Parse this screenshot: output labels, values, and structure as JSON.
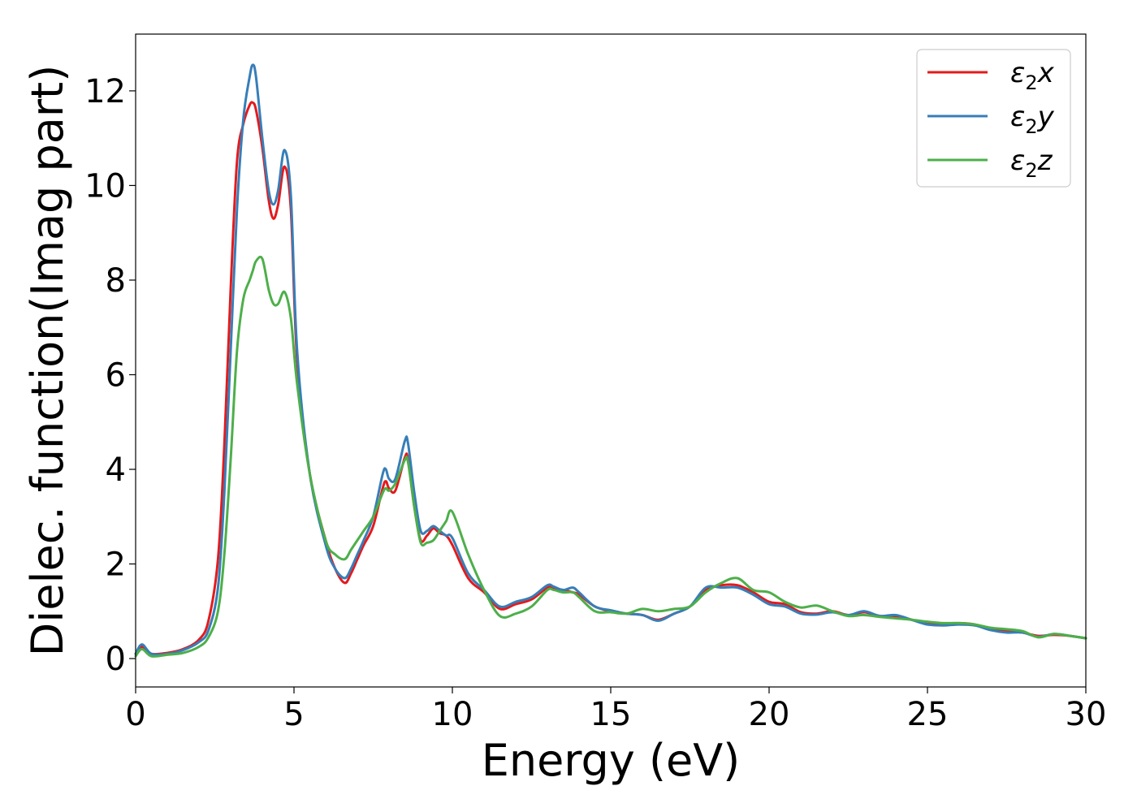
{
  "chart_data": {
    "type": "line",
    "xlabel": "Energy (eV)",
    "ylabel": "Dielec. function(Imag part)",
    "xlim": [
      0,
      30
    ],
    "ylim": [
      -0.6,
      13.2
    ],
    "xticks": [
      0,
      5,
      10,
      15,
      20,
      25,
      30
    ],
    "yticks": [
      0,
      2,
      4,
      6,
      8,
      10,
      12
    ],
    "grid": false,
    "legend_position": "top-right",
    "series": [
      {
        "name": "ε2x",
        "legend_base": "ε",
        "legend_sub": "2",
        "legend_tail": "x",
        "color": "#e41a1c",
        "x": [
          0,
          0.2,
          0.5,
          1,
          1.5,
          2,
          2.3,
          2.6,
          2.8,
          3,
          3.2,
          3.4,
          3.6,
          3.7,
          3.8,
          4,
          4.2,
          4.35,
          4.5,
          4.7,
          4.9,
          5.1,
          5.5,
          6,
          6.3,
          6.6,
          6.8,
          7,
          7.2,
          7.5,
          7.8,
          7.9,
          8,
          8.2,
          8.5,
          8.6,
          8.8,
          9,
          9.2,
          9.4,
          9.6,
          9.8,
          10,
          10.5,
          11,
          11.5,
          12,
          12.5,
          13,
          13.2,
          13.5,
          13.8,
          14,
          14.5,
          15,
          15.5,
          16,
          16.5,
          17,
          17.5,
          18,
          18.5,
          19,
          19.5,
          20,
          20.5,
          21,
          21.5,
          22,
          22.5,
          23,
          23.5,
          24,
          24.5,
          25,
          25.5,
          26,
          26.5,
          27,
          27.5,
          28,
          28.5,
          29,
          29.5,
          30
        ],
        "y": [
          0.1,
          0.25,
          0.1,
          0.12,
          0.2,
          0.4,
          0.8,
          2.1,
          4.5,
          7.8,
          10.5,
          11.3,
          11.7,
          11.75,
          11.6,
          10.8,
          9.7,
          9.3,
          9.6,
          10.4,
          9.5,
          6.3,
          3.9,
          2.5,
          1.9,
          1.6,
          1.8,
          2.1,
          2.4,
          2.8,
          3.6,
          3.75,
          3.6,
          3.55,
          4.25,
          4.2,
          3.2,
          2.5,
          2.6,
          2.75,
          2.65,
          2.6,
          2.4,
          1.7,
          1.4,
          1.05,
          1.15,
          1.25,
          1.5,
          1.48,
          1.45,
          1.4,
          1.35,
          1.1,
          1.0,
          0.95,
          0.92,
          0.82,
          0.95,
          1.1,
          1.45,
          1.55,
          1.55,
          1.4,
          1.2,
          1.15,
          0.98,
          0.95,
          1.0,
          0.92,
          0.98,
          0.9,
          0.9,
          0.82,
          0.75,
          0.72,
          0.75,
          0.72,
          0.62,
          0.58,
          0.55,
          0.48,
          0.5,
          0.48,
          0.43
        ]
      },
      {
        "name": "ε2y",
        "legend_base": "ε",
        "legend_sub": "2",
        "legend_tail": "y",
        "color": "#377eb8",
        "x": [
          0,
          0.2,
          0.5,
          1,
          1.5,
          2,
          2.3,
          2.6,
          2.8,
          3,
          3.2,
          3.4,
          3.6,
          3.7,
          3.8,
          4,
          4.2,
          4.35,
          4.5,
          4.7,
          4.9,
          5.1,
          5.5,
          6,
          6.3,
          6.6,
          6.8,
          7,
          7.2,
          7.5,
          7.8,
          7.9,
          8,
          8.2,
          8.5,
          8.6,
          8.8,
          9,
          9.2,
          9.4,
          9.6,
          9.8,
          10,
          10.5,
          11,
          11.5,
          12,
          12.5,
          13,
          13.2,
          13.5,
          13.8,
          14,
          14.5,
          15,
          15.5,
          16,
          16.5,
          17,
          17.5,
          18,
          18.5,
          19,
          19.5,
          20,
          20.5,
          21,
          21.5,
          22,
          22.5,
          23,
          23.5,
          24,
          24.5,
          25,
          25.5,
          26,
          26.5,
          27,
          27.5,
          28,
          28.5,
          29,
          29.5,
          30
        ],
        "y": [
          0.1,
          0.3,
          0.1,
          0.1,
          0.18,
          0.35,
          0.6,
          1.5,
          3.5,
          6.5,
          9.5,
          11.4,
          12.3,
          12.55,
          12.3,
          11.0,
          9.9,
          9.6,
          9.9,
          10.75,
          9.8,
          6.5,
          3.9,
          2.4,
          1.9,
          1.7,
          1.9,
          2.2,
          2.5,
          3.0,
          3.9,
          4.0,
          3.8,
          3.8,
          4.6,
          4.55,
          3.5,
          2.7,
          2.7,
          2.8,
          2.7,
          2.6,
          2.55,
          1.8,
          1.45,
          1.1,
          1.2,
          1.3,
          1.55,
          1.52,
          1.45,
          1.5,
          1.4,
          1.1,
          1.02,
          0.95,
          0.92,
          0.8,
          0.95,
          1.1,
          1.5,
          1.5,
          1.5,
          1.35,
          1.15,
          1.1,
          0.95,
          0.93,
          0.98,
          0.92,
          1.0,
          0.9,
          0.92,
          0.82,
          0.72,
          0.7,
          0.72,
          0.7,
          0.6,
          0.55,
          0.55,
          0.46,
          0.52,
          0.48,
          0.43
        ]
      },
      {
        "name": "ε2z",
        "legend_base": "ε",
        "legend_sub": "2",
        "legend_tail": "z",
        "color": "#4daf4a",
        "x": [
          0,
          0.2,
          0.5,
          1,
          1.5,
          2,
          2.3,
          2.6,
          2.8,
          3,
          3.2,
          3.4,
          3.6,
          3.7,
          3.8,
          4,
          4.2,
          4.35,
          4.5,
          4.7,
          4.9,
          5.1,
          5.5,
          6,
          6.3,
          6.6,
          6.8,
          7,
          7.2,
          7.5,
          7.8,
          7.9,
          8,
          8.2,
          8.5,
          8.6,
          8.8,
          9,
          9.2,
          9.4,
          9.6,
          9.8,
          10,
          10.5,
          11,
          11.5,
          12,
          12.5,
          13,
          13.2,
          13.5,
          13.8,
          14,
          14.5,
          15,
          15.5,
          16,
          16.5,
          17,
          17.5,
          18,
          18.5,
          19,
          19.5,
          20,
          20.5,
          21,
          21.5,
          22,
          22.5,
          23,
          23.5,
          24,
          24.5,
          25,
          25.5,
          26,
          26.5,
          27,
          27.5,
          28,
          28.5,
          29,
          29.5,
          30
        ],
        "y": [
          0.05,
          0.2,
          0.05,
          0.08,
          0.12,
          0.25,
          0.45,
          1.0,
          2.2,
          4.2,
          6.5,
          7.6,
          8.0,
          8.2,
          8.4,
          8.45,
          7.8,
          7.5,
          7.5,
          7.75,
          7.2,
          5.8,
          3.9,
          2.5,
          2.2,
          2.1,
          2.3,
          2.5,
          2.7,
          3.0,
          3.5,
          3.6,
          3.55,
          3.7,
          4.2,
          4.15,
          3.2,
          2.45,
          2.45,
          2.5,
          2.7,
          2.9,
          3.1,
          2.2,
          1.45,
          0.9,
          0.95,
          1.1,
          1.45,
          1.45,
          1.4,
          1.4,
          1.3,
          1.0,
          0.98,
          0.95,
          1.05,
          1.0,
          1.05,
          1.1,
          1.4,
          1.6,
          1.7,
          1.45,
          1.4,
          1.2,
          1.08,
          1.12,
          1.0,
          0.9,
          0.92,
          0.88,
          0.85,
          0.82,
          0.78,
          0.75,
          0.75,
          0.72,
          0.65,
          0.62,
          0.58,
          0.45,
          0.52,
          0.48,
          0.43
        ]
      }
    ]
  }
}
